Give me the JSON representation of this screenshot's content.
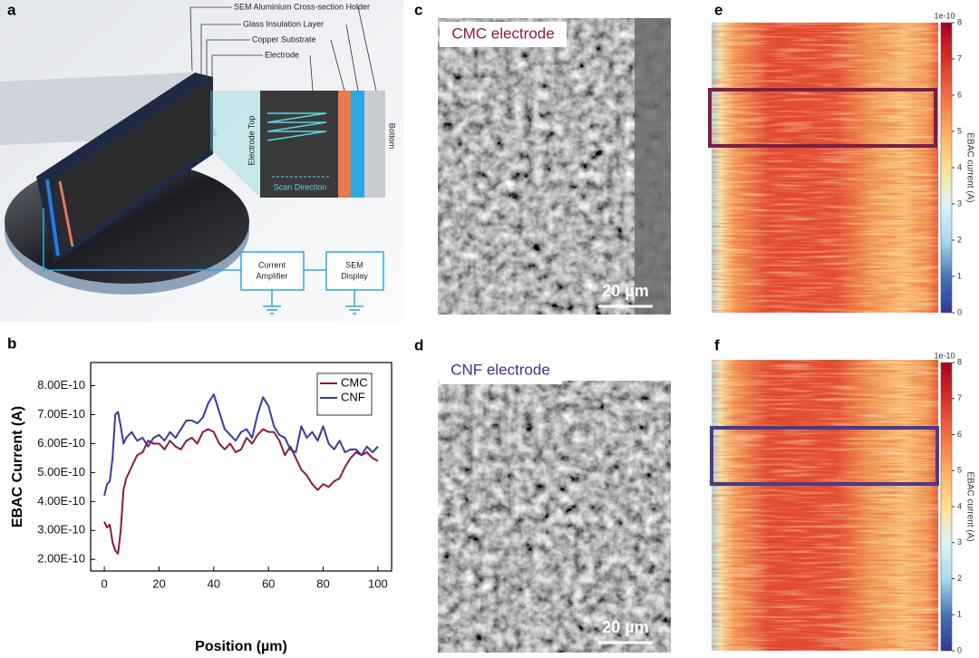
{
  "panel_labels": [
    "a",
    "b",
    "c",
    "d",
    "e",
    "f"
  ],
  "diagram": {
    "holder": "SEM Aluminium Cross-section Holder",
    "glass": "Glass Insulation Layer",
    "copper": "Copper Substrate",
    "electrode": "Electrode",
    "electrode_top": "Electrode Top",
    "scan_direction": "Scan Direction",
    "bottom": "Bottom",
    "amplifier": [
      "Current",
      "Amplifier"
    ],
    "display": [
      "SEM",
      "Display"
    ]
  },
  "chart_data": {
    "type": "line",
    "xlabel": "Position (µm)",
    "ylabel": "EBAC Current (A)",
    "x": [
      0,
      1,
      2,
      3,
      4,
      5,
      6,
      7,
      8,
      10,
      12,
      14,
      16,
      18,
      20,
      22,
      24,
      26,
      28,
      30,
      32,
      34,
      36,
      38,
      40,
      42,
      44,
      46,
      48,
      50,
      52,
      54,
      56,
      58,
      60,
      62,
      64,
      66,
      68,
      70,
      72,
      74,
      76,
      78,
      80,
      82,
      84,
      86,
      88,
      90,
      92,
      94,
      96,
      98,
      100
    ],
    "series": [
      {
        "name": "CMC",
        "color": "#8b1a3f",
        "values": [
          3.3e-10,
          3.1e-10,
          3.2e-10,
          2.6e-10,
          2.3e-10,
          2.2e-10,
          3e-10,
          4.4e-10,
          4.8e-10,
          5.2e-10,
          5.6e-10,
          5.7e-10,
          6.1e-10,
          6e-10,
          6e-10,
          5.8e-10,
          6.1e-10,
          5.9e-10,
          5.8e-10,
          6.1e-10,
          6.2e-10,
          6e-10,
          6.4e-10,
          6.5e-10,
          6.4e-10,
          6e-10,
          5.8e-10,
          6e-10,
          5.7e-10,
          5.8e-10,
          6.2e-10,
          6e-10,
          6.3e-10,
          6.5e-10,
          6.4e-10,
          6.4e-10,
          6.1e-10,
          5.6e-10,
          5.9e-10,
          5.5e-10,
          5.1e-10,
          4.9e-10,
          4.6e-10,
          4.4e-10,
          4.6e-10,
          4.5e-10,
          4.7e-10,
          4.8e-10,
          5.2e-10,
          5.5e-10,
          5.7e-10,
          5.6e-10,
          5.7e-10,
          5.5e-10,
          5.4e-10
        ]
      },
      {
        "name": "CNF",
        "color": "#3b3a9e",
        "values": [
          4.2e-10,
          4.6e-10,
          4.7e-10,
          5.5e-10,
          7e-10,
          7.1e-10,
          6.6e-10,
          6e-10,
          6.2e-10,
          6.4e-10,
          6.1e-10,
          6.2e-10,
          5.9e-10,
          6.2e-10,
          6.3e-10,
          6.1e-10,
          6.4e-10,
          6.2e-10,
          6.5e-10,
          6.8e-10,
          6.8e-10,
          6.7e-10,
          6.9e-10,
          7.4e-10,
          7.7e-10,
          7.1e-10,
          6.5e-10,
          6.3e-10,
          6.1e-10,
          6.4e-10,
          6.5e-10,
          6.2e-10,
          7e-10,
          7.6e-10,
          7.3e-10,
          6.6e-10,
          6.3e-10,
          6.2e-10,
          5.8e-10,
          5.7e-10,
          6.6e-10,
          6.2e-10,
          6.4e-10,
          6.1e-10,
          6.6e-10,
          6e-10,
          5.8e-10,
          6.1e-10,
          5.7e-10,
          5.8e-10,
          5.8e-10,
          5.6e-10,
          5.9e-10,
          5.7e-10,
          5.9e-10
        ]
      }
    ],
    "xlim": [
      -5,
      105
    ],
    "xticks": [
      0,
      20,
      40,
      60,
      80,
      100
    ],
    "ylim": [
      1.6e-10,
      8.8e-10
    ],
    "yticks": [
      {
        "value": 2e-10,
        "label": "2.00E-10"
      },
      {
        "value": 3e-10,
        "label": "3.00E-10"
      },
      {
        "value": 4e-10,
        "label": "4.00E-10"
      },
      {
        "value": 5e-10,
        "label": "5.00E-10"
      },
      {
        "value": 6e-10,
        "label": "6.00E-10"
      },
      {
        "value": 7e-10,
        "label": "7.00E-10"
      },
      {
        "value": 8e-10,
        "label": "8.00E-10"
      }
    ],
    "legend": "upper right",
    "grid": false
  },
  "images": [
    {
      "label": "CMC electrode",
      "scale_bar": "20 µm"
    },
    {
      "label": "CNF electrode",
      "scale_bar": "20 µm"
    }
  ],
  "colorbars": [
    {
      "lim": [
        0,
        8
      ],
      "ticks": [
        0,
        1,
        2,
        3,
        4,
        5,
        6,
        7,
        8
      ],
      "offset_label": "1e-10",
      "label": "EBAC current (A)"
    },
    {
      "lim": [
        0,
        8
      ],
      "ticks": [
        0,
        1,
        2,
        3,
        4,
        5,
        6,
        7,
        8
      ],
      "offset_label": "1e-10",
      "label": "EBAC current (A)"
    }
  ]
}
